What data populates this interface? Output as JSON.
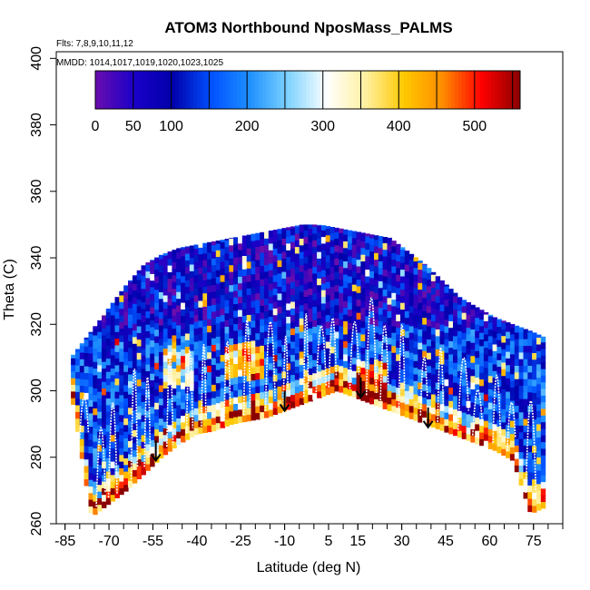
{
  "chart_data": {
    "type": "heatmap",
    "title": "ATOM3 Northbound NposMass_PALMS",
    "flights_label": "Flts: 7,8,9,10,11,12",
    "mmdd_label": "MMDD: 1014,1017,1019,1020,1023,1025",
    "xlabel": "Latitude (deg N)",
    "ylabel": "Theta (C)",
    "xlim": [
      -88,
      85
    ],
    "ylim": [
      260,
      402
    ],
    "x_ticks": [
      -85,
      -70,
      -55,
      -40,
      -25,
      -10,
      5,
      15,
      30,
      45,
      60,
      75
    ],
    "x_minor_step": 5,
    "y_ticks": [
      260,
      280,
      300,
      320,
      340,
      360,
      380,
      400
    ],
    "colorbar": {
      "range": [
        0,
        560
      ],
      "ticks": [
        0,
        50,
        100,
        200,
        300,
        400,
        500
      ],
      "colors": [
        "#6a0dad",
        "#1a00c8",
        "#0000aa",
        "#0050ff",
        "#1e90ff",
        "#7fd4ff",
        "#ffffff",
        "#fff0a0",
        "#ffc800",
        "#ff8c00",
        "#ff0000",
        "#8b0000"
      ]
    },
    "envelope": {
      "lat": [
        -83,
        -76,
        -70,
        -64,
        -58,
        -52,
        -46,
        -40,
        -34,
        -28,
        -22,
        -16,
        -10,
        -4,
        2,
        8,
        14,
        20,
        26,
        32,
        38,
        44,
        50,
        56,
        62,
        68,
        74,
        79
      ],
      "theta_min": [
        300,
        262,
        266,
        270,
        275,
        280,
        284,
        287,
        288,
        290,
        291,
        292,
        294,
        296,
        298,
        300,
        298,
        296,
        294,
        292,
        290,
        288,
        286,
        284,
        282,
        279,
        263,
        265
      ],
      "theta_max": [
        310,
        318,
        325,
        332,
        338,
        341,
        343,
        344,
        345,
        346,
        347,
        348,
        349,
        350,
        350,
        349,
        348,
        347,
        346,
        342,
        338,
        333,
        328,
        325,
        322,
        320,
        318,
        316
      ]
    },
    "arrows": [
      {
        "lat": -54,
        "theta": 279
      },
      {
        "lat": -10,
        "theta": 294
      },
      {
        "lat": 16,
        "theta": 298
      },
      {
        "lat": 39,
        "theta": 289
      }
    ]
  }
}
